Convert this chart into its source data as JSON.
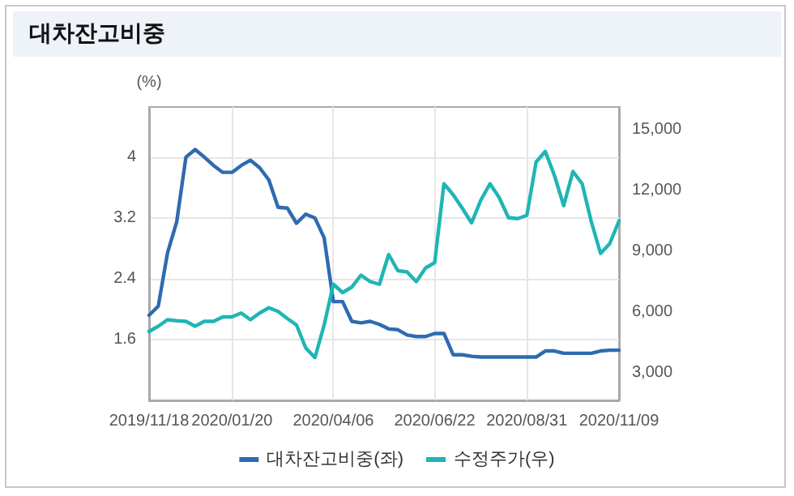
{
  "chart_data": {
    "type": "line",
    "title": "대차잔고비중",
    "ylabel": "(%)",
    "x": [
      "2019-11-18",
      "2019-11-25",
      "2019-12-02",
      "2019-12-09",
      "2019-12-16",
      "2019-12-23",
      "2019-12-30",
      "2020-01-06",
      "2020-01-13",
      "2020-01-20",
      "2020-01-27",
      "2020-02-03",
      "2020-02-10",
      "2020-02-17",
      "2020-02-24",
      "2020-03-02",
      "2020-03-09",
      "2020-03-16",
      "2020-03-23",
      "2020-03-30",
      "2020-04-06",
      "2020-04-13",
      "2020-04-20",
      "2020-04-27",
      "2020-05-04",
      "2020-05-11",
      "2020-05-18",
      "2020-05-25",
      "2020-06-01",
      "2020-06-08",
      "2020-06-15",
      "2020-06-22",
      "2020-06-29",
      "2020-07-06",
      "2020-07-13",
      "2020-07-20",
      "2020-07-27",
      "2020-08-03",
      "2020-08-10",
      "2020-08-17",
      "2020-08-24",
      "2020-08-31",
      "2020-09-07",
      "2020-09-14",
      "2020-09-21",
      "2020-09-28",
      "2020-10-05",
      "2020-10-12",
      "2020-10-19",
      "2020-10-26",
      "2020-11-02",
      "2020-11-09"
    ],
    "series": [
      {
        "name": "대차잔고비중(좌)",
        "color": "#2e6bb0",
        "values": [
          1.92,
          2.04,
          2.74,
          3.15,
          4.0,
          4.1,
          4.0,
          3.89,
          3.8,
          3.8,
          3.89,
          3.96,
          3.86,
          3.7,
          3.34,
          3.33,
          3.13,
          3.25,
          3.2,
          2.94,
          2.1,
          2.1,
          1.84,
          1.82,
          1.84,
          1.8,
          1.74,
          1.73,
          1.66,
          1.64,
          1.64,
          1.68,
          1.68,
          1.4,
          1.4,
          1.38,
          1.37,
          1.37,
          1.37,
          1.37,
          1.37,
          1.37,
          1.37,
          1.45,
          1.45,
          1.42,
          1.42,
          1.42,
          1.42,
          1.45,
          1.46,
          1.46
        ]
      },
      {
        "name": "수정주가(우)",
        "color": "#1fb5b5",
        "axis": "y2",
        "values": [
          5040,
          5300,
          5620,
          5570,
          5540,
          5300,
          5540,
          5540,
          5760,
          5760,
          5950,
          5620,
          5950,
          6210,
          6030,
          5680,
          5360,
          4230,
          3750,
          5360,
          7370,
          6960,
          7230,
          7820,
          7500,
          7370,
          8840,
          8040,
          7980,
          7500,
          8170,
          8440,
          12330,
          11790,
          11120,
          10400,
          11520,
          12330,
          11650,
          10660,
          10610,
          10770,
          13400,
          13930,
          12730,
          11250,
          12940,
          12330,
          10450,
          8890,
          9380,
          10500
        ]
      }
    ],
    "xlim": [
      "2019-11-18",
      "2020-11-09"
    ],
    "xticks": [
      {
        "value": "2019-11-18",
        "label": "2019/11/18"
      },
      {
        "value": "2020-01-20",
        "label": "2020/01/20"
      },
      {
        "value": "2020-04-06",
        "label": "2020/04/06"
      },
      {
        "value": "2020-06-22",
        "label": "2020/06/22"
      },
      {
        "value": "2020-08-31",
        "label": "2020/08/31"
      },
      {
        "value": "2020-11-09",
        "label": "2020/11/09"
      }
    ],
    "ylim": [
      0.8,
      4.66
    ],
    "yticks": [
      1.6,
      2.4,
      3.2,
      4
    ],
    "y2lim": [
      1640,
      16120
    ],
    "y2ticks": [
      {
        "value": 3000,
        "label": "3,000"
      },
      {
        "value": 6000,
        "label": "6,000"
      },
      {
        "value": 9000,
        "label": "9,000"
      },
      {
        "value": 12000,
        "label": "12,000"
      },
      {
        "value": 15000,
        "label": "15,000"
      }
    ],
    "grid": true,
    "legend": "bottom",
    "marker": "none",
    "line_style": "solid"
  }
}
